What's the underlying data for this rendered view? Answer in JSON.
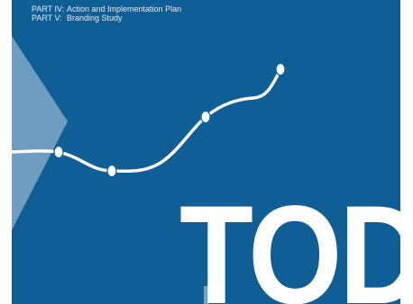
{
  "toc": [
    {
      "part": "PART IV:",
      "title": "Action and Implementation Plan"
    },
    {
      "part": "PART V:",
      "title": "Branding Study"
    }
  ],
  "brand_title": "TOD",
  "colors": {
    "background": "#0f5e95",
    "chevron": "#6f9dc2",
    "line": "#ffffff",
    "text": "#ffffff"
  }
}
